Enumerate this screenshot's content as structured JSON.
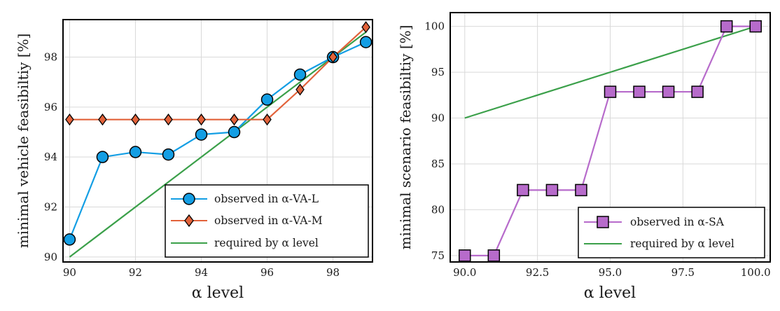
{
  "chart_data": [
    {
      "type": "line",
      "xlabel": "α level",
      "ylabel": "minimal vehicle feasibiltiy [%]",
      "xlim": [
        89.8,
        99.2
      ],
      "ylim": [
        89.8,
        99.5
      ],
      "xticks": [
        90,
        92,
        94,
        96,
        98
      ],
      "xtick_labels": [
        "90",
        "92",
        "94",
        "96",
        "98"
      ],
      "yticks": [
        90,
        92,
        94,
        96,
        98
      ],
      "ytick_labels": [
        "90",
        "92",
        "94",
        "96",
        "98"
      ],
      "grid": true,
      "legend_position": "bottom-right",
      "series": [
        {
          "name": "observed in α-VA-L",
          "color": "#139ee4",
          "marker": "circle",
          "x": [
            90,
            91,
            92,
            93,
            94,
            95,
            96,
            97,
            98,
            99
          ],
          "y": [
            90.7,
            94.0,
            94.2,
            94.1,
            94.9,
            95.0,
            96.3,
            97.3,
            98.0,
            98.6
          ]
        },
        {
          "name": "observed in α-VA-M",
          "color": "#e2623a",
          "marker": "diamond",
          "x": [
            90,
            91,
            92,
            93,
            94,
            95,
            96,
            97,
            98,
            99
          ],
          "y": [
            95.5,
            95.5,
            95.5,
            95.5,
            95.5,
            95.5,
            95.5,
            96.7,
            98.0,
            99.2
          ]
        },
        {
          "name": "required by α level",
          "color": "#3ba04a",
          "marker": "none",
          "x": [
            90,
            99
          ],
          "y": [
            90,
            99
          ]
        }
      ]
    },
    {
      "type": "line",
      "xlabel": "α level",
      "ylabel": "minimal scenario feasibiltiy [%]",
      "xlim": [
        89.5,
        100.5
      ],
      "ylim": [
        74.3,
        101.5
      ],
      "xticks": [
        90,
        92.5,
        95,
        97.5,
        100
      ],
      "xtick_labels": [
        "90.0",
        "92.5",
        "95.0",
        "97.5",
        "100.0"
      ],
      "yticks": [
        75,
        80,
        85,
        90,
        95,
        100
      ],
      "ytick_labels": [
        "75",
        "80",
        "85",
        "90",
        "95",
        "100"
      ],
      "grid": true,
      "legend_position": "bottom-right",
      "series": [
        {
          "name": "observed in α-SA",
          "color": "#b76bcb",
          "marker": "square",
          "x": [
            90,
            91,
            92,
            93,
            94,
            95,
            96,
            97,
            98,
            99,
            100
          ],
          "y": [
            75.0,
            75.0,
            82.14,
            82.14,
            82.14,
            92.86,
            92.86,
            92.86,
            92.86,
            100.0,
            100.0
          ]
        },
        {
          "name": "required by α level",
          "color": "#3ba04a",
          "marker": "none",
          "x": [
            90,
            100
          ],
          "y": [
            90,
            100
          ]
        }
      ]
    }
  ]
}
